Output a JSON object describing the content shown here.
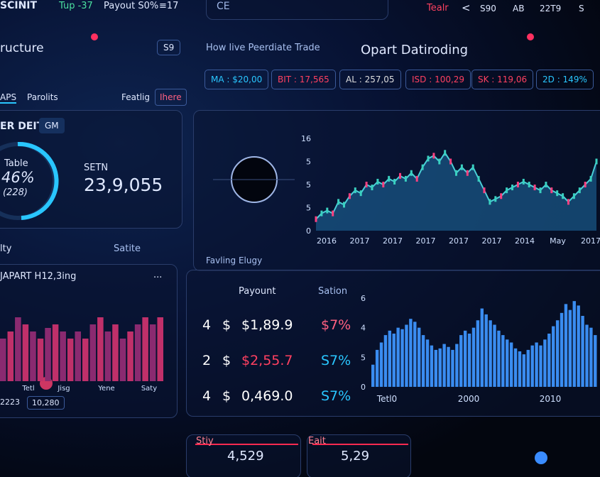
{
  "topbar": {
    "brand": "SCINIT",
    "stat1": "Tup -37",
    "stat2": "Payout S0%",
    "stat3": "≡17",
    "search": "CE",
    "user": "Tealr",
    "nav": "<",
    "s1": "S90",
    "s2": "AB",
    "s3": "22T9",
    "s4": "S"
  },
  "left_header": {
    "title": "ructure",
    "button": "S9"
  },
  "center_header": {
    "subtitle": "How live Peerdiate Trade",
    "title": "Opart Datiroding"
  },
  "tickers": [
    "MA : $20,00",
    "BIT : 17,565",
    "AL : 257,05",
    "ISD : 100,29",
    "SK : 119,06",
    "2D : 149%"
  ],
  "tabs": [
    "APS",
    "Parolits",
    "Featlig",
    "Ihere"
  ],
  "gauge_card": {
    "title": "ER DEIT",
    "badge": "GM",
    "gauge_label": "Table",
    "gauge_value": "46%",
    "gauge_sub": "(228)",
    "stat_label": "SETN",
    "stat_value": "23,9,055"
  },
  "line_chart": {
    "y_labels": [
      "16",
      "5",
      "5",
      "5",
      "0"
    ],
    "ylim": [
      0,
      16
    ],
    "x_labels": [
      "2016",
      "2017",
      "2017",
      "2017",
      "2017",
      "2017",
      "2014",
      "May",
      "2017"
    ],
    "values": [
      2,
      3,
      3.5,
      3,
      5,
      4.5,
      6,
      7,
      6.5,
      8,
      7.5,
      8.5,
      8,
      9,
      8.5,
      9.5,
      9,
      10,
      9,
      11,
      12.5,
      13,
      12,
      13.5,
      12,
      10,
      11,
      10,
      11,
      9,
      7,
      5,
      5.5,
      6,
      7,
      7.5,
      8,
      8.5,
      8,
      7.5,
      7,
      8,
      7,
      6.5,
      6,
      5,
      6,
      7,
      8,
      9,
      12
    ]
  },
  "left_panel": {
    "title": "lty",
    "select": "Satite",
    "chart_title": "JAPART H12,3ing",
    "menu": "...",
    "x_labels": [
      "Tetl",
      "Jisg",
      "Yene",
      "Saty"
    ],
    "foot1": "2223",
    "foot2": "10,280",
    "values": [
      6,
      7,
      9,
      8,
      7,
      6,
      7.5,
      8,
      7,
      6,
      7,
      6,
      8,
      9,
      7,
      8,
      6,
      7,
      8,
      9,
      8,
      9
    ]
  },
  "table": {
    "title": "Favling Elugy",
    "headers": [
      "Payount",
      "Sation"
    ],
    "rows": [
      [
        "4",
        "$",
        "$1,89.9",
        "$7%"
      ],
      [
        "2",
        "$",
        "$2,55.7",
        "S7%"
      ],
      [
        "4",
        "$",
        "0,469.0",
        "S7%"
      ]
    ]
  },
  "bar_chart": {
    "y_labels": [
      "6",
      "4",
      "5",
      "0"
    ],
    "ylim": [
      0,
      6
    ],
    "x_labels": [
      "Tetl0",
      "2000",
      "2010"
    ],
    "values": [
      1.5,
      2.5,
      3,
      3.5,
      3.8,
      3.6,
      4,
      3.9,
      4.2,
      4.6,
      4.4,
      4,
      3.5,
      3.2,
      2.8,
      2.5,
      2.6,
      2.9,
      2.7,
      2.5,
      2.9,
      3.5,
      3.8,
      3.6,
      4,
      4.5,
      5.3,
      4.9,
      4.5,
      4.2,
      3.8,
      3.5,
      3.2,
      3,
      2.6,
      2.4,
      2.2,
      2.5,
      2.8,
      3,
      2.8,
      3.2,
      3.6,
      4.1,
      4.5,
      5,
      5.6,
      5.2,
      5.8,
      5.5,
      4.8,
      4.2,
      4,
      3.5
    ]
  },
  "bottom": [
    {
      "label": "Stiy",
      "value": "4,529"
    },
    {
      "label": "Eait",
      "value": "5,29"
    }
  ]
}
